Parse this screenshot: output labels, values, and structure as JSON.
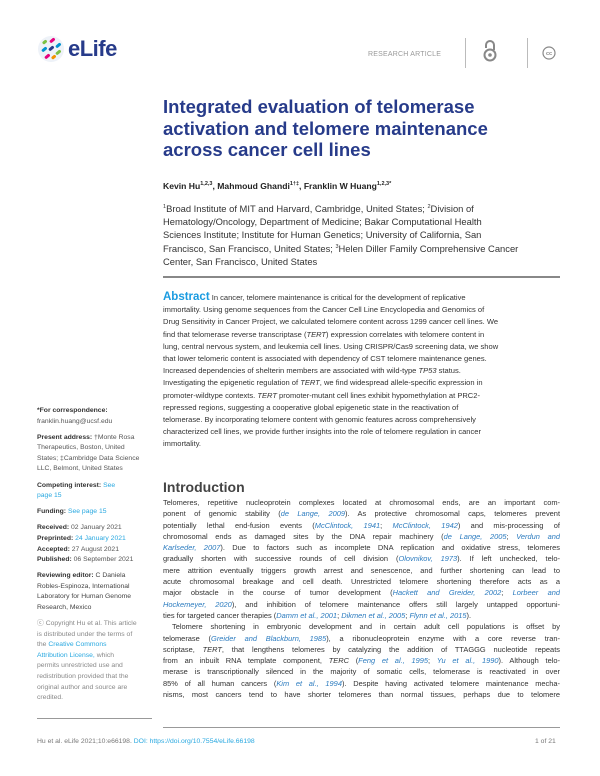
{
  "header": {
    "logo_text": "eLife",
    "article_type": "RESEARCH ARTICLE",
    "icons": [
      "open-access-icon",
      "creative-commons-icon"
    ]
  },
  "title_lines": [
    "Integrated evaluation of telomerase",
    "activation and telomere maintenance",
    "across cancer cell lines"
  ],
  "authors": [
    {
      "name": "Kevin Hu",
      "sup": "1,2,3"
    },
    {
      "name": "Mahmoud Ghandi",
      "sup": "1†‡"
    },
    {
      "name": "Franklin W Huang",
      "sup": "1,2,3*"
    }
  ],
  "affiliation_lines": [
    [
      [
        "sup",
        "1"
      ],
      [
        "t",
        "Broad Institute of MIT and Harvard, Cambridge, United States; "
      ],
      [
        "sup",
        "2"
      ],
      [
        "t",
        "Division of"
      ]
    ],
    [
      [
        "t",
        "Hematology/Oncology, Department of Medicine; Bakar Computational Health"
      ]
    ],
    [
      [
        "t",
        "Sciences Institute; Institute for Human Genetics; University of California, San"
      ]
    ],
    [
      [
        "t",
        "Francisco, San Francisco, United States; "
      ],
      [
        "sup",
        "3"
      ],
      [
        "t",
        "Helen Diller Family Comprehensive Cancer"
      ]
    ],
    [
      [
        "t",
        "Center, San Francisco, United States"
      ]
    ]
  ],
  "abstract": {
    "label": "Abstract",
    "lines": [
      [
        [
          "t",
          " In cancer, telomere maintenance is critical for the development of replicative"
        ]
      ],
      [
        [
          "t",
          "immortality. Using genome sequences from the Cancer Cell Line Encyclopedia and Genomics of"
        ]
      ],
      [
        [
          "t",
          "Drug Sensitivity in Cancer Project, we calculated telomere content across 1299 cancer cell lines. We"
        ]
      ],
      [
        [
          "t",
          "find that telomerase reverse transcriptase ("
        ],
        [
          "i",
          "TERT"
        ],
        [
          "t",
          ") expression correlates with telomere content in"
        ]
      ],
      [
        [
          "t",
          "lung, central nervous system, and leukemia cell lines. Using CRISPR/Cas9 screening data, we show"
        ]
      ],
      [
        [
          "t",
          "that lower telomeric content is associated with dependency of CST telomere maintenance genes."
        ]
      ],
      [
        [
          "t",
          "Increased dependencies of shelterin members are associated with wild-type "
        ],
        [
          "i",
          "TP53"
        ],
        [
          "t",
          " status."
        ]
      ],
      [
        [
          "t",
          "Investigating the epigenetic regulation of "
        ],
        [
          "i",
          "TERT"
        ],
        [
          "t",
          ", we find widespread allele-specific expression in"
        ]
      ],
      [
        [
          "t",
          "promoter-wildtype contexts. "
        ],
        [
          "i",
          "TERT"
        ],
        [
          "t",
          " promoter-mutant cell lines exhibit hypomethylation at PRC2-"
        ]
      ],
      [
        [
          "t",
          "repressed regions, suggesting a cooperative global epigenetic state in the reactivation of"
        ]
      ],
      [
        [
          "t",
          "telomerase. By incorporating telomere content with genomic features across comprehensively"
        ]
      ],
      [
        [
          "t",
          "characterized cell lines, we provide further insights into the role of telomere regulation in cancer"
        ]
      ],
      [
        [
          "t",
          "immortality."
        ]
      ]
    ]
  },
  "introduction": {
    "heading": "Introduction",
    "lines": [
      [
        [
          "t",
          "Telomeres, repetitive nucleoprotein complexes located at chromosomal ends, are an important com-"
        ]
      ],
      [
        [
          "t",
          "ponent of genomic stability ("
        ],
        [
          "c",
          "de Lange, 2009"
        ],
        [
          "t",
          "). As protective chromosomal caps, telomeres prevent"
        ]
      ],
      [
        [
          "t",
          "potentially lethal end-fusion events ("
        ],
        [
          "c",
          "McClintock, 1941"
        ],
        [
          "t",
          "; "
        ],
        [
          "c",
          "McClintock, 1942"
        ],
        [
          "t",
          ") and mis-processing of"
        ]
      ],
      [
        [
          "t",
          "chromosomal ends as damaged sites by the DNA repair machinery ("
        ],
        [
          "c",
          "de Lange, 2005"
        ],
        [
          "t",
          "; "
        ],
        [
          "c",
          "Verdun and"
        ]
      ],
      [
        [
          "c",
          "Karlseder, 2007"
        ],
        [
          "t",
          "). Due to factors such as incomplete DNA replication and oxidative stress, telomeres"
        ]
      ],
      [
        [
          "t",
          "gradually shorten with successive rounds of cell division ("
        ],
        [
          "c",
          "Olovnikov, 1973"
        ],
        [
          "t",
          "). If left unchecked, telo-"
        ]
      ],
      [
        [
          "t",
          "mere attrition eventually triggers growth arrest and senescence, and further shortening can lead to"
        ]
      ],
      [
        [
          "t",
          "acute chromosomal breakage and cell death. Unrestricted telomere shortening therefore acts as a"
        ]
      ],
      [
        [
          "t",
          "major obstacle in the course of tumor development ("
        ],
        [
          "c",
          "Hackett and Greider, 2002"
        ],
        [
          "t",
          "; "
        ],
        [
          "c",
          "Lorbeer and"
        ]
      ],
      [
        [
          "c",
          "Hockemeyer, 2020"
        ],
        [
          "t",
          "), and inhibition of telomere maintenance offers still largely untapped opportuni-"
        ]
      ],
      [
        [
          "t",
          "ties for targeted cancer therapies ("
        ],
        [
          "c",
          "Damm et al., 2001"
        ],
        [
          "t",
          "; "
        ],
        [
          "c",
          "Dikmen et al., 2005"
        ],
        [
          "t",
          "; "
        ],
        [
          "c",
          "Flynn et al., 2015"
        ],
        [
          "t",
          ")."
        ]
      ],
      [
        [
          "t",
          "Telomere shortening in embryonic development and in certain adult cell populations is offset by"
        ]
      ],
      [
        [
          "t",
          "telomerase ("
        ],
        [
          "c",
          "Greider and Blackburn, 1985"
        ],
        [
          "t",
          "), a ribonucleoprotein enzyme with a core reverse tran-"
        ]
      ],
      [
        [
          "t",
          "scriptase, "
        ],
        [
          "i",
          "TERT"
        ],
        [
          "t",
          ", that lengthens telomeres by catalyzing the addition of TTAGGG nucleotide repeats"
        ]
      ],
      [
        [
          "t",
          "from an inbuilt RNA template component, "
        ],
        [
          "i",
          "TERC"
        ],
        [
          "t",
          " ("
        ],
        [
          "c",
          "Feng et al., 1995"
        ],
        [
          "t",
          "; "
        ],
        [
          "c",
          "Yu et al., 1990"
        ],
        [
          "t",
          "). Although telo-"
        ]
      ],
      [
        [
          "t",
          "merase is transcriptionally silenced in the majority of somatic cells, telomerase is reactivated in over"
        ]
      ],
      [
        [
          "t",
          "85% of all human cancers ("
        ],
        [
          "c",
          "Kim et al., 1994"
        ],
        [
          "t",
          "). Despite having activated telomere maintenance mecha-"
        ]
      ],
      [
        [
          "t",
          "nisms, most cancers tend to have shorter telomeres than normal tissues, perhaps due to telomere"
        ]
      ]
    ]
  },
  "sidebar": {
    "correspondence_label": "*For correspondence:",
    "correspondence_email": "franklin.huang@ucsf.edu",
    "present_address_label": "Present address: ",
    "present_address_lines": [
      "†Monte Rosa",
      "Therapeutics, Boston, United",
      "States; ‡Cambridge Data Science",
      "LLC, Belmont, United States"
    ],
    "competing_label": "Competing interest: ",
    "competing_link_1": "See",
    "competing_link_2": "page 15",
    "funding_label": "Funding: ",
    "funding_link": "See page 15",
    "dates": [
      {
        "label": "Received: ",
        "value": "02 January 2021",
        "link": false
      },
      {
        "label": "Preprinted: ",
        "value": "24 January 2021",
        "link": true
      },
      {
        "label": "Accepted: ",
        "value": "27 August 2021",
        "link": false
      },
      {
        "label": "Published: ",
        "value": "06 September 2021",
        "link": false
      }
    ],
    "editor_label": "Reviewing editor: ",
    "editor_lines": [
      "C Daniela",
      "Robles-Espinoza, International",
      "Laboratory for Human Genome",
      "Research, Mexico"
    ],
    "copyright_lines": [
      "Copyright Hu et al. This article",
      "is distributed under the terms of",
      "the "
    ],
    "license_link_1": "Creative Commons",
    "license_link_2": "Attribution License,",
    "copyright_tail": " which",
    "copyright_rest": [
      "permits unrestricted use and",
      "redistribution provided that the",
      "original author and source are",
      "credited."
    ]
  },
  "footer": {
    "citation": "Hu et al. eLife 2021;10:e66198. ",
    "doi_label": "DOI: ",
    "doi": "https://doi.org/10.7554/eLife.66198",
    "page": "1 of 21"
  },
  "colors": {
    "title": "#273b8a",
    "abstract_label": "#1a9be0",
    "link": "#29a8e0",
    "citation": "#2b7bbf"
  }
}
